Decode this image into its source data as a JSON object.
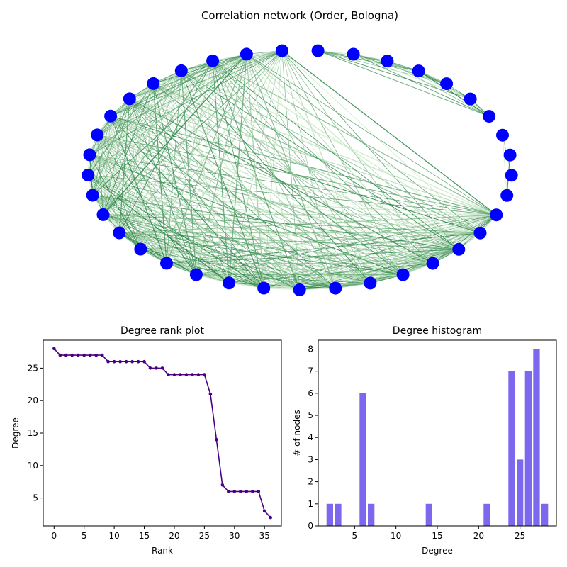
{
  "colors": {
    "node": "#0000ff",
    "rank_line": "#4b0082",
    "hist_bar": "#7b68ee",
    "edge_light": "#d6efd0",
    "edge_dark": "#1a7a3a"
  },
  "chart_data": [
    {
      "type": "network",
      "title": "Correlation network (Order, Bologna)",
      "node_count": 37,
      "axes_visible": false
    },
    {
      "type": "line",
      "title": "Degree rank plot",
      "xlabel": "Rank",
      "ylabel": "Degree",
      "xlim": [
        -1.8,
        37.8
      ],
      "ylim": [
        0.7,
        29.3
      ],
      "xticks": [
        0,
        5,
        10,
        15,
        20,
        25,
        30,
        35
      ],
      "yticks": [
        5,
        10,
        15,
        20,
        25
      ],
      "x": [
        0,
        1,
        2,
        3,
        4,
        5,
        6,
        7,
        8,
        9,
        10,
        11,
        12,
        13,
        14,
        15,
        16,
        17,
        18,
        19,
        20,
        21,
        22,
        23,
        24,
        25,
        26,
        27,
        28,
        29,
        30,
        31,
        32,
        33,
        34,
        35,
        36
      ],
      "y": [
        28,
        27,
        27,
        27,
        27,
        27,
        27,
        27,
        27,
        26,
        26,
        26,
        26,
        26,
        26,
        26,
        25,
        25,
        25,
        24,
        24,
        24,
        24,
        24,
        24,
        24,
        21,
        14,
        7,
        6,
        6,
        6,
        6,
        6,
        6,
        3,
        2
      ],
      "marker": "o"
    },
    {
      "type": "bar",
      "title": "Degree histogram",
      "xlabel": "Degree",
      "ylabel": "# of nodes",
      "xlim": [
        0.6,
        29.4
      ],
      "ylim": [
        0,
        8.4
      ],
      "xticks": [
        5,
        10,
        15,
        20,
        25
      ],
      "yticks": [
        0,
        1,
        2,
        3,
        4,
        5,
        6,
        7,
        8
      ],
      "x": [
        2,
        3,
        6,
        7,
        14,
        21,
        24,
        25,
        26,
        27,
        28
      ],
      "values": [
        1,
        1,
        6,
        1,
        1,
        1,
        7,
        3,
        7,
        8,
        1
      ]
    }
  ]
}
